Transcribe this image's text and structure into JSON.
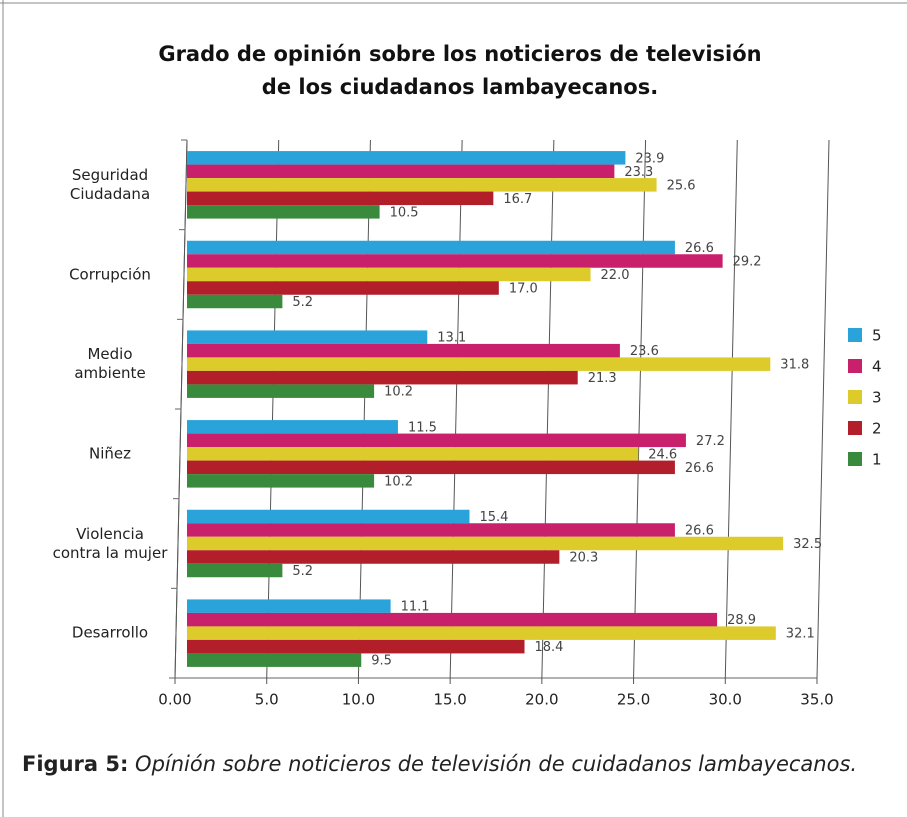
{
  "chart_data": {
    "type": "bar",
    "orientation": "horizontal",
    "title": "Grado de opinión sobre los noticieros de televisión\nde los ciudadanos lambayecanos.",
    "categories": [
      "Seguridad\nCiudadana",
      "Corrupción",
      "Medio\nambiente",
      "Niñez",
      "Violencia\ncontra la mujer",
      "Desarrollo"
    ],
    "series": [
      {
        "name": "5",
        "color": "#29a3d9",
        "values": [
          23.9,
          26.6,
          13.1,
          11.5,
          15.4,
          11.1
        ],
        "value_labels": [
          "23.9",
          "26.6",
          "13.1",
          "11.5",
          "15.4",
          "11.1"
        ]
      },
      {
        "name": "4",
        "color": "#c8206b",
        "values": [
          23.3,
          29.2,
          23.6,
          27.2,
          26.6,
          28.9
        ],
        "value_labels": [
          "23.3",
          "29.2",
          "23.6",
          "27.2",
          "26.6",
          "28.9"
        ]
      },
      {
        "name": "3",
        "color": "#dccb2b",
        "values": [
          25.6,
          22.0,
          31.8,
          24.6,
          32.5,
          32.1
        ],
        "value_labels": [
          "25.6",
          "22.0",
          "31.8",
          "24.6",
          "32.5",
          "32.1"
        ]
      },
      {
        "name": "2",
        "color": "#b21f2b",
        "values": [
          16.7,
          17.0,
          21.3,
          26.6,
          20.3,
          18.4
        ],
        "value_labels": [
          "16.7",
          "17.0",
          "21.3",
          "26.6",
          "20.3",
          "18.4"
        ]
      },
      {
        "name": "1",
        "color": "#3a8a3e",
        "values": [
          10.5,
          5.2,
          10.2,
          10.2,
          5.2,
          9.5
        ],
        "value_labels": [
          "10.5",
          "5.2",
          "10.2",
          "10.2",
          "5.2",
          "9.5"
        ]
      }
    ],
    "xlim": [
      0,
      35
    ],
    "xticks": [
      {
        "value": 0,
        "label": "0.00"
      },
      {
        "value": 5,
        "label": "5.0"
      },
      {
        "value": 10,
        "label": "10.0"
      },
      {
        "value": 15,
        "label": "15.0"
      },
      {
        "value": 20,
        "label": "20.0"
      },
      {
        "value": 25,
        "label": "25.0"
      },
      {
        "value": 30,
        "label": "30.0"
      },
      {
        "value": 35,
        "label": "35.0"
      }
    ],
    "grid": true,
    "legend": "right",
    "caption": {
      "label": "Figura 5:",
      "text": " Opínión sobre noticieros de televisión de cuidadanos lambayecanos."
    }
  }
}
